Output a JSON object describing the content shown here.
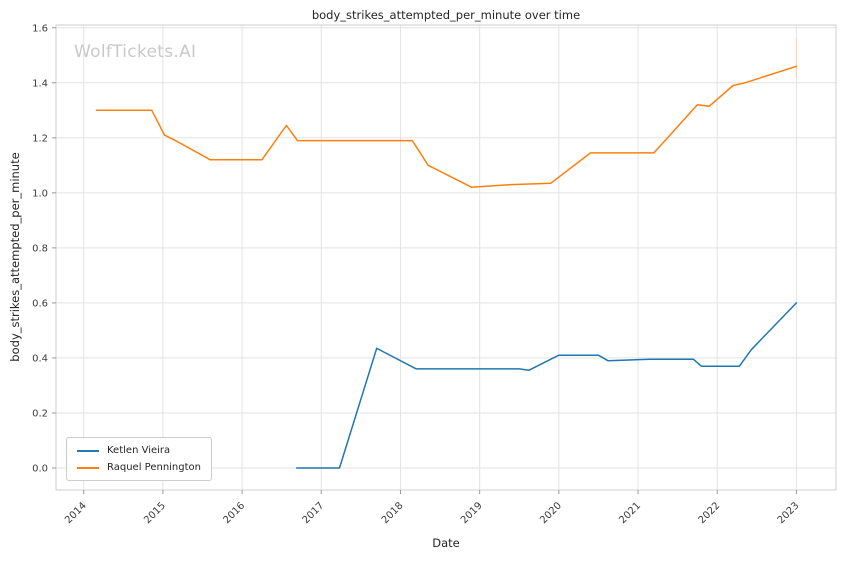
{
  "watermark": "WolfTickets.AI",
  "chart_data": {
    "type": "line",
    "title": "body_strikes_attempted_per_minute over time",
    "xlabel": "Date",
    "ylabel": "body_strikes_attempted_per_minute",
    "grid": true,
    "legend_position": "lower left",
    "xlim": [
      2013.65,
      2023.5
    ],
    "ylim": [
      -0.08,
      1.61
    ],
    "xticks": [
      2014,
      2015,
      2016,
      2017,
      2018,
      2019,
      2020,
      2021,
      2022,
      2023
    ],
    "xtick_labels": [
      "2014",
      "2015",
      "2016",
      "2017",
      "2018",
      "2019",
      "2020",
      "2021",
      "2022",
      "2023"
    ],
    "yticks": [
      0.0,
      0.2,
      0.4,
      0.6,
      0.8,
      1.0,
      1.2,
      1.4,
      1.6
    ],
    "ytick_labels": [
      "0.0",
      "0.2",
      "0.4",
      "0.6",
      "0.8",
      "1.0",
      "1.2",
      "1.4",
      "1.6"
    ],
    "series": [
      {
        "name": "Ketlen Vieira",
        "color": "#1f77b4",
        "points": [
          [
            2016.69,
            0.0
          ],
          [
            2017.23,
            0.0
          ],
          [
            2017.7,
            0.435
          ],
          [
            2018.2,
            0.36
          ],
          [
            2019.5,
            0.36
          ],
          [
            2019.62,
            0.355
          ],
          [
            2020.0,
            0.41
          ],
          [
            2020.5,
            0.41
          ],
          [
            2020.62,
            0.39
          ],
          [
            2021.15,
            0.395
          ],
          [
            2021.7,
            0.395
          ],
          [
            2021.8,
            0.37
          ],
          [
            2022.28,
            0.37
          ],
          [
            2022.43,
            0.43
          ],
          [
            2023.0,
            0.6
          ]
        ]
      },
      {
        "name": "Raquel Pennington",
        "color": "#ff7f0e",
        "points": [
          [
            2014.16,
            1.3
          ],
          [
            2014.86,
            1.3
          ],
          [
            2015.02,
            1.21
          ],
          [
            2015.16,
            1.19
          ],
          [
            2015.6,
            1.12
          ],
          [
            2016.25,
            1.12
          ],
          [
            2016.56,
            1.245
          ],
          [
            2016.7,
            1.19
          ],
          [
            2018.15,
            1.19
          ],
          [
            2018.35,
            1.1
          ],
          [
            2018.9,
            1.02
          ],
          [
            2019.4,
            1.03
          ],
          [
            2019.9,
            1.035
          ],
          [
            2020.4,
            1.145
          ],
          [
            2021.2,
            1.145
          ],
          [
            2021.75,
            1.32
          ],
          [
            2021.9,
            1.315
          ],
          [
            2022.2,
            1.39
          ],
          [
            2022.35,
            1.4
          ],
          [
            2023.0,
            1.46
          ]
        ]
      }
    ],
    "annotations": [
      {
        "type": "vline-segment",
        "x": 2023.0,
        "y1": 1.42,
        "y2": 1.56,
        "color": "#ffd2a8"
      }
    ]
  }
}
